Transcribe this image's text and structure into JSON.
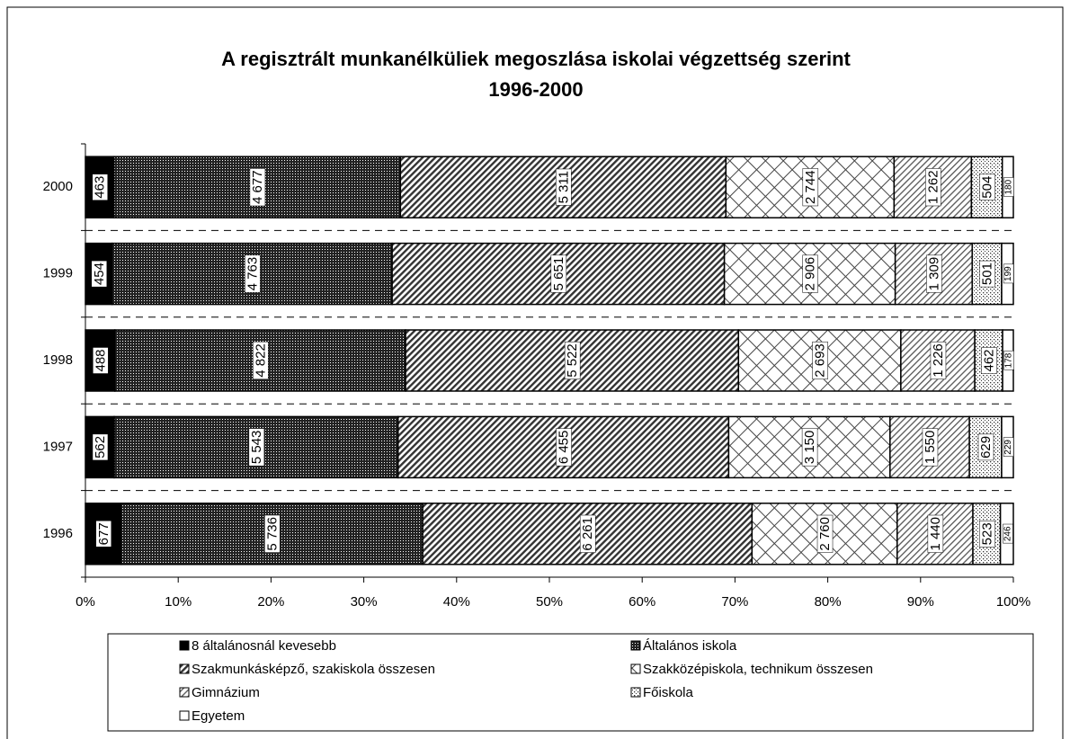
{
  "chart_data": {
    "type": "stacked_percent_barh",
    "title": "A regisztrált munkanélküliek megoszlása iskolai végzettség szerint",
    "subtitle": "1996-2000",
    "categories": [
      "2000",
      "1999",
      "1998",
      "1997",
      "1996"
    ],
    "series": [
      {
        "name": "8 általánosnál kevesebb",
        "values": [
          463,
          454,
          488,
          562,
          677
        ]
      },
      {
        "name": "Általános iskola",
        "values": [
          4677,
          4763,
          4822,
          5543,
          5736
        ],
        "value_labels": [
          "4 677",
          "4 763",
          "4 822",
          "5 543",
          "5 736"
        ]
      },
      {
        "name": "Szakmunkásképző, szakiskola összesen",
        "values": [
          5311,
          5651,
          5522,
          6455,
          6261
        ],
        "value_labels": [
          "5 311",
          "5 651",
          "5 522",
          "6 455",
          "6 261"
        ]
      },
      {
        "name": "Szakközépiskola, technikum összesen",
        "values": [
          2744,
          2906,
          2693,
          3150,
          2760
        ],
        "value_labels": [
          "2 744",
          "2 906",
          "2 693",
          "3 150",
          "2 760"
        ]
      },
      {
        "name": "Gimnázium",
        "values": [
          1262,
          1309,
          1226,
          1550,
          1440
        ],
        "value_labels": [
          "1 262",
          "1 309",
          "1 226",
          "1 550",
          "1 440"
        ]
      },
      {
        "name": "Főiskola",
        "values": [
          504,
          501,
          462,
          629,
          523
        ]
      },
      {
        "name": "Egyetem",
        "values": [
          180,
          199,
          178,
          229,
          246
        ]
      }
    ],
    "xlim": [
      0,
      100
    ],
    "xticks": [
      {
        "value": 0,
        "label": "0%"
      },
      {
        "value": 10,
        "label": "10%"
      },
      {
        "value": 20,
        "label": "20%"
      },
      {
        "value": 30,
        "label": "30%"
      },
      {
        "value": 40,
        "label": "40%"
      },
      {
        "value": 50,
        "label": "50%"
      },
      {
        "value": 60,
        "label": "60%"
      },
      {
        "value": 70,
        "label": "70%"
      },
      {
        "value": 80,
        "label": "80%"
      },
      {
        "value": 90,
        "label": "90%"
      },
      {
        "value": 100,
        "label": "100%"
      }
    ]
  }
}
